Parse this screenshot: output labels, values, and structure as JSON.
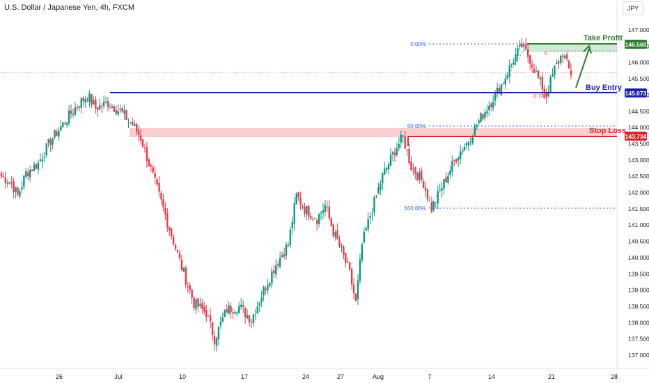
{
  "header": {
    "title": "U.S. Dollar / Japanese Yen, 4h, FXCM",
    "currency": "JPY"
  },
  "colors": {
    "up": "#089981",
    "down": "#f23645",
    "entry_line": "#1e22aa",
    "stop_line": "#e0262b",
    "stop_zone": "#f7c5c8",
    "tp_zone": "#cde8cf",
    "tp_label": "#2e7d32",
    "fib": "#2962ff",
    "current_price_line": "#f23645"
  },
  "annotations": {
    "take_profit": "Take Profit",
    "buy_entry": "Buy Entry",
    "stop_loss": "Stop Loss"
  },
  "fib_labels": {
    "level_0": "0.00%",
    "level_50": "50.00%",
    "level_100": "100.00%",
    "level_786": "0.786",
    "level_0_small": "0"
  },
  "price_tags": {
    "take_profit": "146.560",
    "buy_entry": "145.073",
    "stop_loss": "143.734"
  },
  "chart_data": {
    "type": "candlestick",
    "title": "U.S. Dollar / Japanese Yen, 4h, FXCM",
    "y_axis_side": "right",
    "ylim": [
      136.8,
      147.4
    ],
    "y_ticks": [
      "147.000",
      "146.500",
      "146.000",
      "145.500",
      "145.000",
      "144.500",
      "144.000",
      "143.500",
      "143.000",
      "142.500",
      "142.000",
      "141.500",
      "141.000",
      "140.500",
      "140.000",
      "139.500",
      "139.000",
      "138.500",
      "138.000",
      "137.500",
      "137.000"
    ],
    "x_ticks": [
      "26",
      "Jul",
      "10",
      "17",
      "24",
      "27",
      "Aug",
      "7",
      "14",
      "21",
      "28"
    ],
    "levels": {
      "take_profit": 146.56,
      "buy_entry": 145.073,
      "stop_loss": 143.734,
      "fib_0": 146.56,
      "fib_50": 144.04,
      "fib_100": 141.52,
      "fib_786": 144.96
    },
    "anchor_path": [
      {
        "i": 0,
        "p": 142.5
      },
      {
        "i": 5,
        "p": 142.3
      },
      {
        "i": 8,
        "p": 141.9
      },
      {
        "i": 12,
        "p": 142.6
      },
      {
        "i": 18,
        "p": 142.9
      },
      {
        "i": 24,
        "p": 143.6
      },
      {
        "i": 30,
        "p": 144.1
      },
      {
        "i": 36,
        "p": 144.6
      },
      {
        "i": 42,
        "p": 145.0
      },
      {
        "i": 46,
        "p": 144.6
      },
      {
        "i": 52,
        "p": 144.75
      },
      {
        "i": 58,
        "p": 144.5
      },
      {
        "i": 64,
        "p": 144.1
      },
      {
        "i": 68,
        "p": 143.7
      },
      {
        "i": 74,
        "p": 142.5
      },
      {
        "i": 82,
        "p": 140.9
      },
      {
        "i": 88,
        "p": 139.7
      },
      {
        "i": 94,
        "p": 138.6
      },
      {
        "i": 100,
        "p": 138.3
      },
      {
        "i": 104,
        "p": 137.5
      },
      {
        "i": 110,
        "p": 138.4
      },
      {
        "i": 116,
        "p": 138.5
      },
      {
        "i": 122,
        "p": 138.1
      },
      {
        "i": 128,
        "p": 139.0
      },
      {
        "i": 134,
        "p": 139.8
      },
      {
        "i": 140,
        "p": 140.4
      },
      {
        "i": 144,
        "p": 141.9
      },
      {
        "i": 148,
        "p": 141.5
      },
      {
        "i": 154,
        "p": 141.2
      },
      {
        "i": 158,
        "p": 141.6
      },
      {
        "i": 162,
        "p": 140.8
      },
      {
        "i": 166,
        "p": 140.2
      },
      {
        "i": 170,
        "p": 139.5
      },
      {
        "i": 173,
        "p": 138.6
      },
      {
        "i": 176,
        "p": 140.4
      },
      {
        "i": 180,
        "p": 141.3
      },
      {
        "i": 186,
        "p": 142.5
      },
      {
        "i": 192,
        "p": 143.3
      },
      {
        "i": 196,
        "p": 143.7
      },
      {
        "i": 200,
        "p": 142.8
      },
      {
        "i": 206,
        "p": 142.3
      },
      {
        "i": 210,
        "p": 141.5
      },
      {
        "i": 216,
        "p": 142.3
      },
      {
        "i": 222,
        "p": 143.1
      },
      {
        "i": 228,
        "p": 143.6
      },
      {
        "i": 232,
        "p": 144.1
      },
      {
        "i": 238,
        "p": 144.7
      },
      {
        "i": 244,
        "p": 145.3
      },
      {
        "i": 250,
        "p": 146.1
      },
      {
        "i": 254,
        "p": 146.5
      },
      {
        "i": 258,
        "p": 146.1
      },
      {
        "i": 262,
        "p": 145.5
      },
      {
        "i": 266,
        "p": 145.0
      },
      {
        "i": 270,
        "p": 145.8
      },
      {
        "i": 274,
        "p": 146.3
      },
      {
        "i": 278,
        "p": 145.6
      }
    ],
    "last_price": 145.65
  }
}
